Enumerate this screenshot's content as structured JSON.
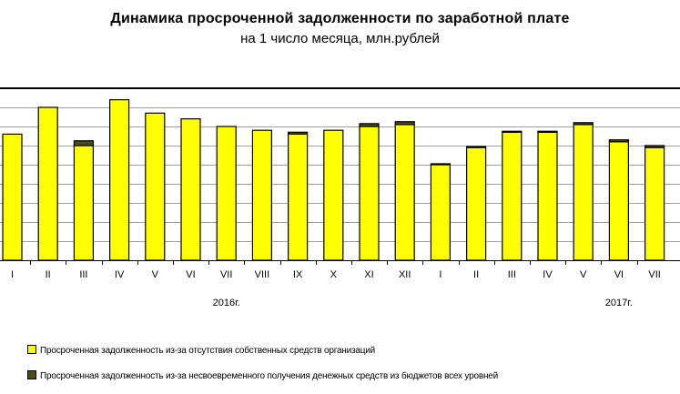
{
  "chart_data": {
    "type": "bar",
    "stacked": true,
    "title": "Динамика просроченной задолженности по заработной плате",
    "subtitle": "на 1 число месяца, млн.рублей",
    "categories": [
      "I",
      "II",
      "III",
      "IV",
      "V",
      "VI",
      "VII",
      "VIII",
      "IX",
      "X",
      "XI",
      "XII",
      "I",
      "II",
      "III",
      "IV",
      "V",
      "VI",
      "VII"
    ],
    "year_labels": [
      {
        "label": "2016г.",
        "category_index": 6
      },
      {
        "label": "2017г.",
        "category_index": 17
      }
    ],
    "series": [
      {
        "name": "Просроченная задолженность из-за отсутствия собственных средств организаций",
        "color": "#ffff00",
        "values": [
          66,
          80,
          60,
          84,
          77,
          74,
          70,
          68,
          66,
          68,
          70,
          71,
          50,
          59,
          67,
          67,
          71,
          62,
          59
        ]
      },
      {
        "name": "Просроченная задолженность из-за несвоевременного получения денежных средств из бюджетов всех уровней",
        "color": "#4d4d1a",
        "values": [
          0,
          0,
          2.5,
          0,
          0,
          0,
          0,
          0,
          1,
          0,
          1.5,
          1.5,
          0.5,
          0.5,
          0.5,
          0.5,
          1,
          1,
          1
        ]
      }
    ],
    "ylim": [
      0,
      90
    ],
    "grid": true,
    "legend_position": "bottom-left"
  }
}
